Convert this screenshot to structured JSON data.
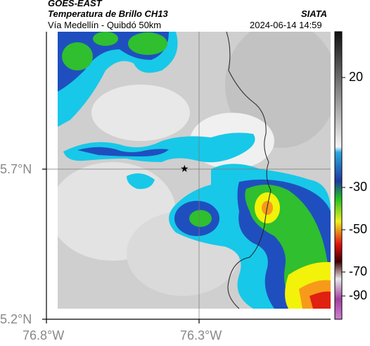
{
  "header": {
    "satellite": "GOES-EAST",
    "product": "Temperatura de Brillo CH13",
    "route": "Vía Medellín - Quibdó 50km",
    "agency": "SIATA",
    "datetime": "2024-06-14 14:59"
  },
  "axes": {
    "y_ticks": [
      "5.7°N",
      "5.2°N"
    ],
    "x_ticks": [
      "76.8°W",
      "76.3°W"
    ]
  },
  "colorbar": {
    "ticks": [
      "20",
      "-30",
      "-50",
      "-70",
      "-90"
    ]
  },
  "marker": {
    "symbol": "★"
  },
  "colors": {
    "cold_cloud_blue": "#1f4fbf",
    "cyan": "#18c8e8",
    "green": "#2fbf2f",
    "yellow": "#f2f20a",
    "red": "#e02010",
    "gray_light": "#e6e6e6",
    "gray_mid": "#bdbdbd"
  }
}
